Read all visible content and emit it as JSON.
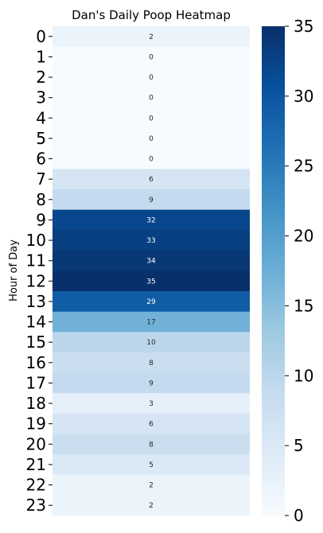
{
  "chart_data": {
    "type": "heatmap",
    "title": "Dan's Daily Poop Heatmap",
    "xlabel": "",
    "ylabel": "Hour of Day",
    "categories": [
      "0",
      "1",
      "2",
      "3",
      "4",
      "5",
      "6",
      "7",
      "8",
      "9",
      "10",
      "11",
      "12",
      "13",
      "14",
      "15",
      "16",
      "17",
      "18",
      "19",
      "20",
      "21",
      "22",
      "23"
    ],
    "values": [
      2,
      0,
      0,
      0,
      0,
      0,
      0,
      6,
      9,
      32,
      33,
      34,
      35,
      29,
      17,
      10,
      8,
      9,
      3,
      6,
      8,
      5,
      2,
      2
    ],
    "colorbar": {
      "min": 0,
      "max": 35,
      "ticks": [
        0,
        5,
        10,
        15,
        20,
        25,
        30,
        35
      ],
      "colormap": "Blues"
    },
    "grid": false,
    "legend": "colorbar-right"
  }
}
